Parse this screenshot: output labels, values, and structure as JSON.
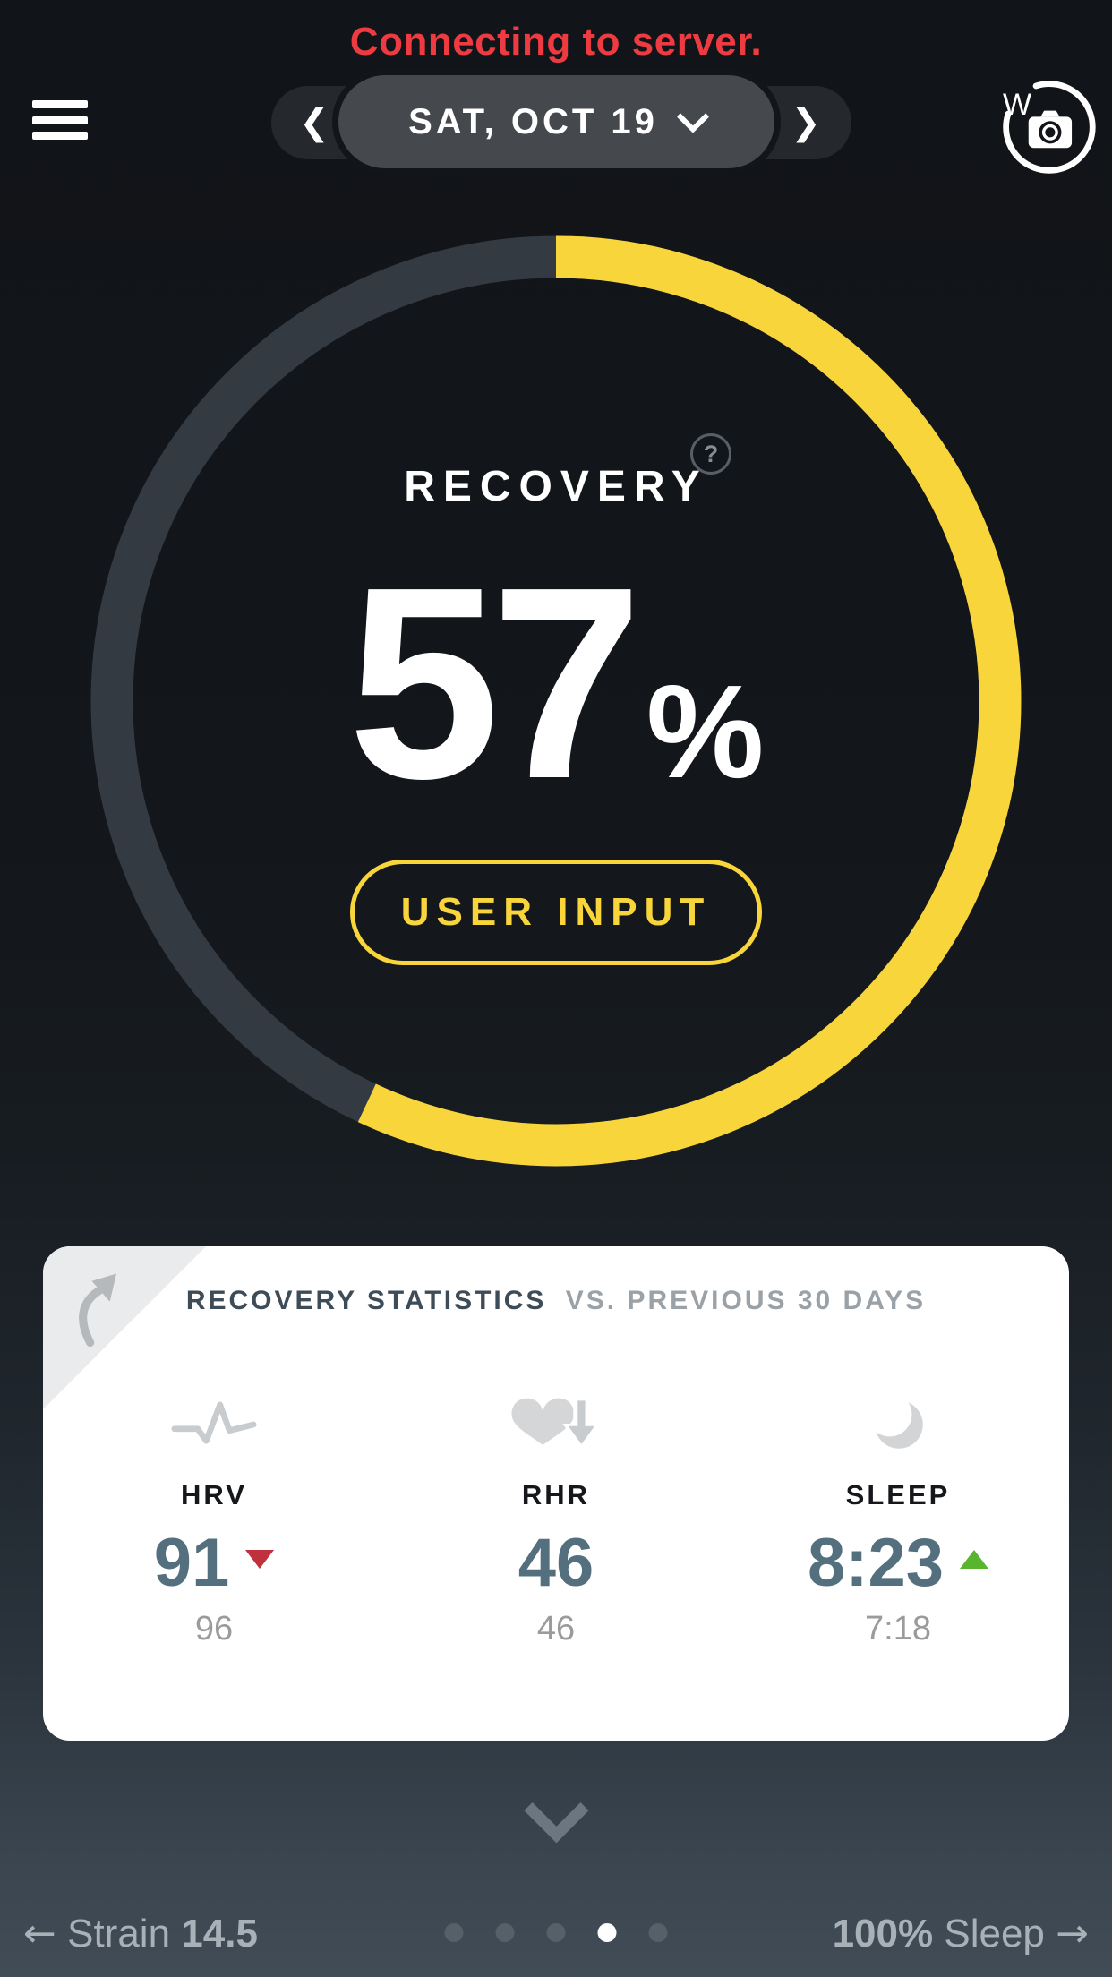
{
  "status_banner": {
    "text": "Connecting to server."
  },
  "header": {
    "prev_arrow": "❮",
    "next_arrow": "❯",
    "date_label": "SAT, OCT 19",
    "logo_letter": "W"
  },
  "recovery": {
    "title": "RECOVERY",
    "help_glyph": "?",
    "score": "57",
    "unit": "%",
    "percent": 57,
    "button_label": "USER INPUT"
  },
  "colors": {
    "accent_yellow": "#f8d53b",
    "ring_track": "#333a42",
    "alert_red": "#ee3b42",
    "metric_value_blue": "#54707f",
    "trend_down_red": "#c0303d",
    "trend_up_green": "#59b42e"
  },
  "stats_card": {
    "title_primary": "RECOVERY STATISTICS",
    "title_secondary": "VS. PREVIOUS 30 DAYS",
    "metrics": [
      {
        "icon": "hrv-pulse-icon",
        "label": "HRV",
        "value": "91",
        "trend": "down",
        "trend_color": "#c0303d",
        "previous": "96"
      },
      {
        "icon": "resting-heart-rate-icon",
        "label": "RHR",
        "value": "46",
        "trend": "none",
        "trend_color": "",
        "previous": "46"
      },
      {
        "icon": "sleep-moon-icon",
        "label": "SLEEP",
        "value": "8:23",
        "trend": "up",
        "trend_color": "#59b42e",
        "previous": "7:18"
      }
    ]
  },
  "pager": {
    "left": {
      "arrow": "←",
      "label": "Strain",
      "value": "14.5"
    },
    "right": {
      "value": "100%",
      "label": "Sleep",
      "arrow": "→"
    },
    "dot_count": 5,
    "active_dot_index": 3
  }
}
